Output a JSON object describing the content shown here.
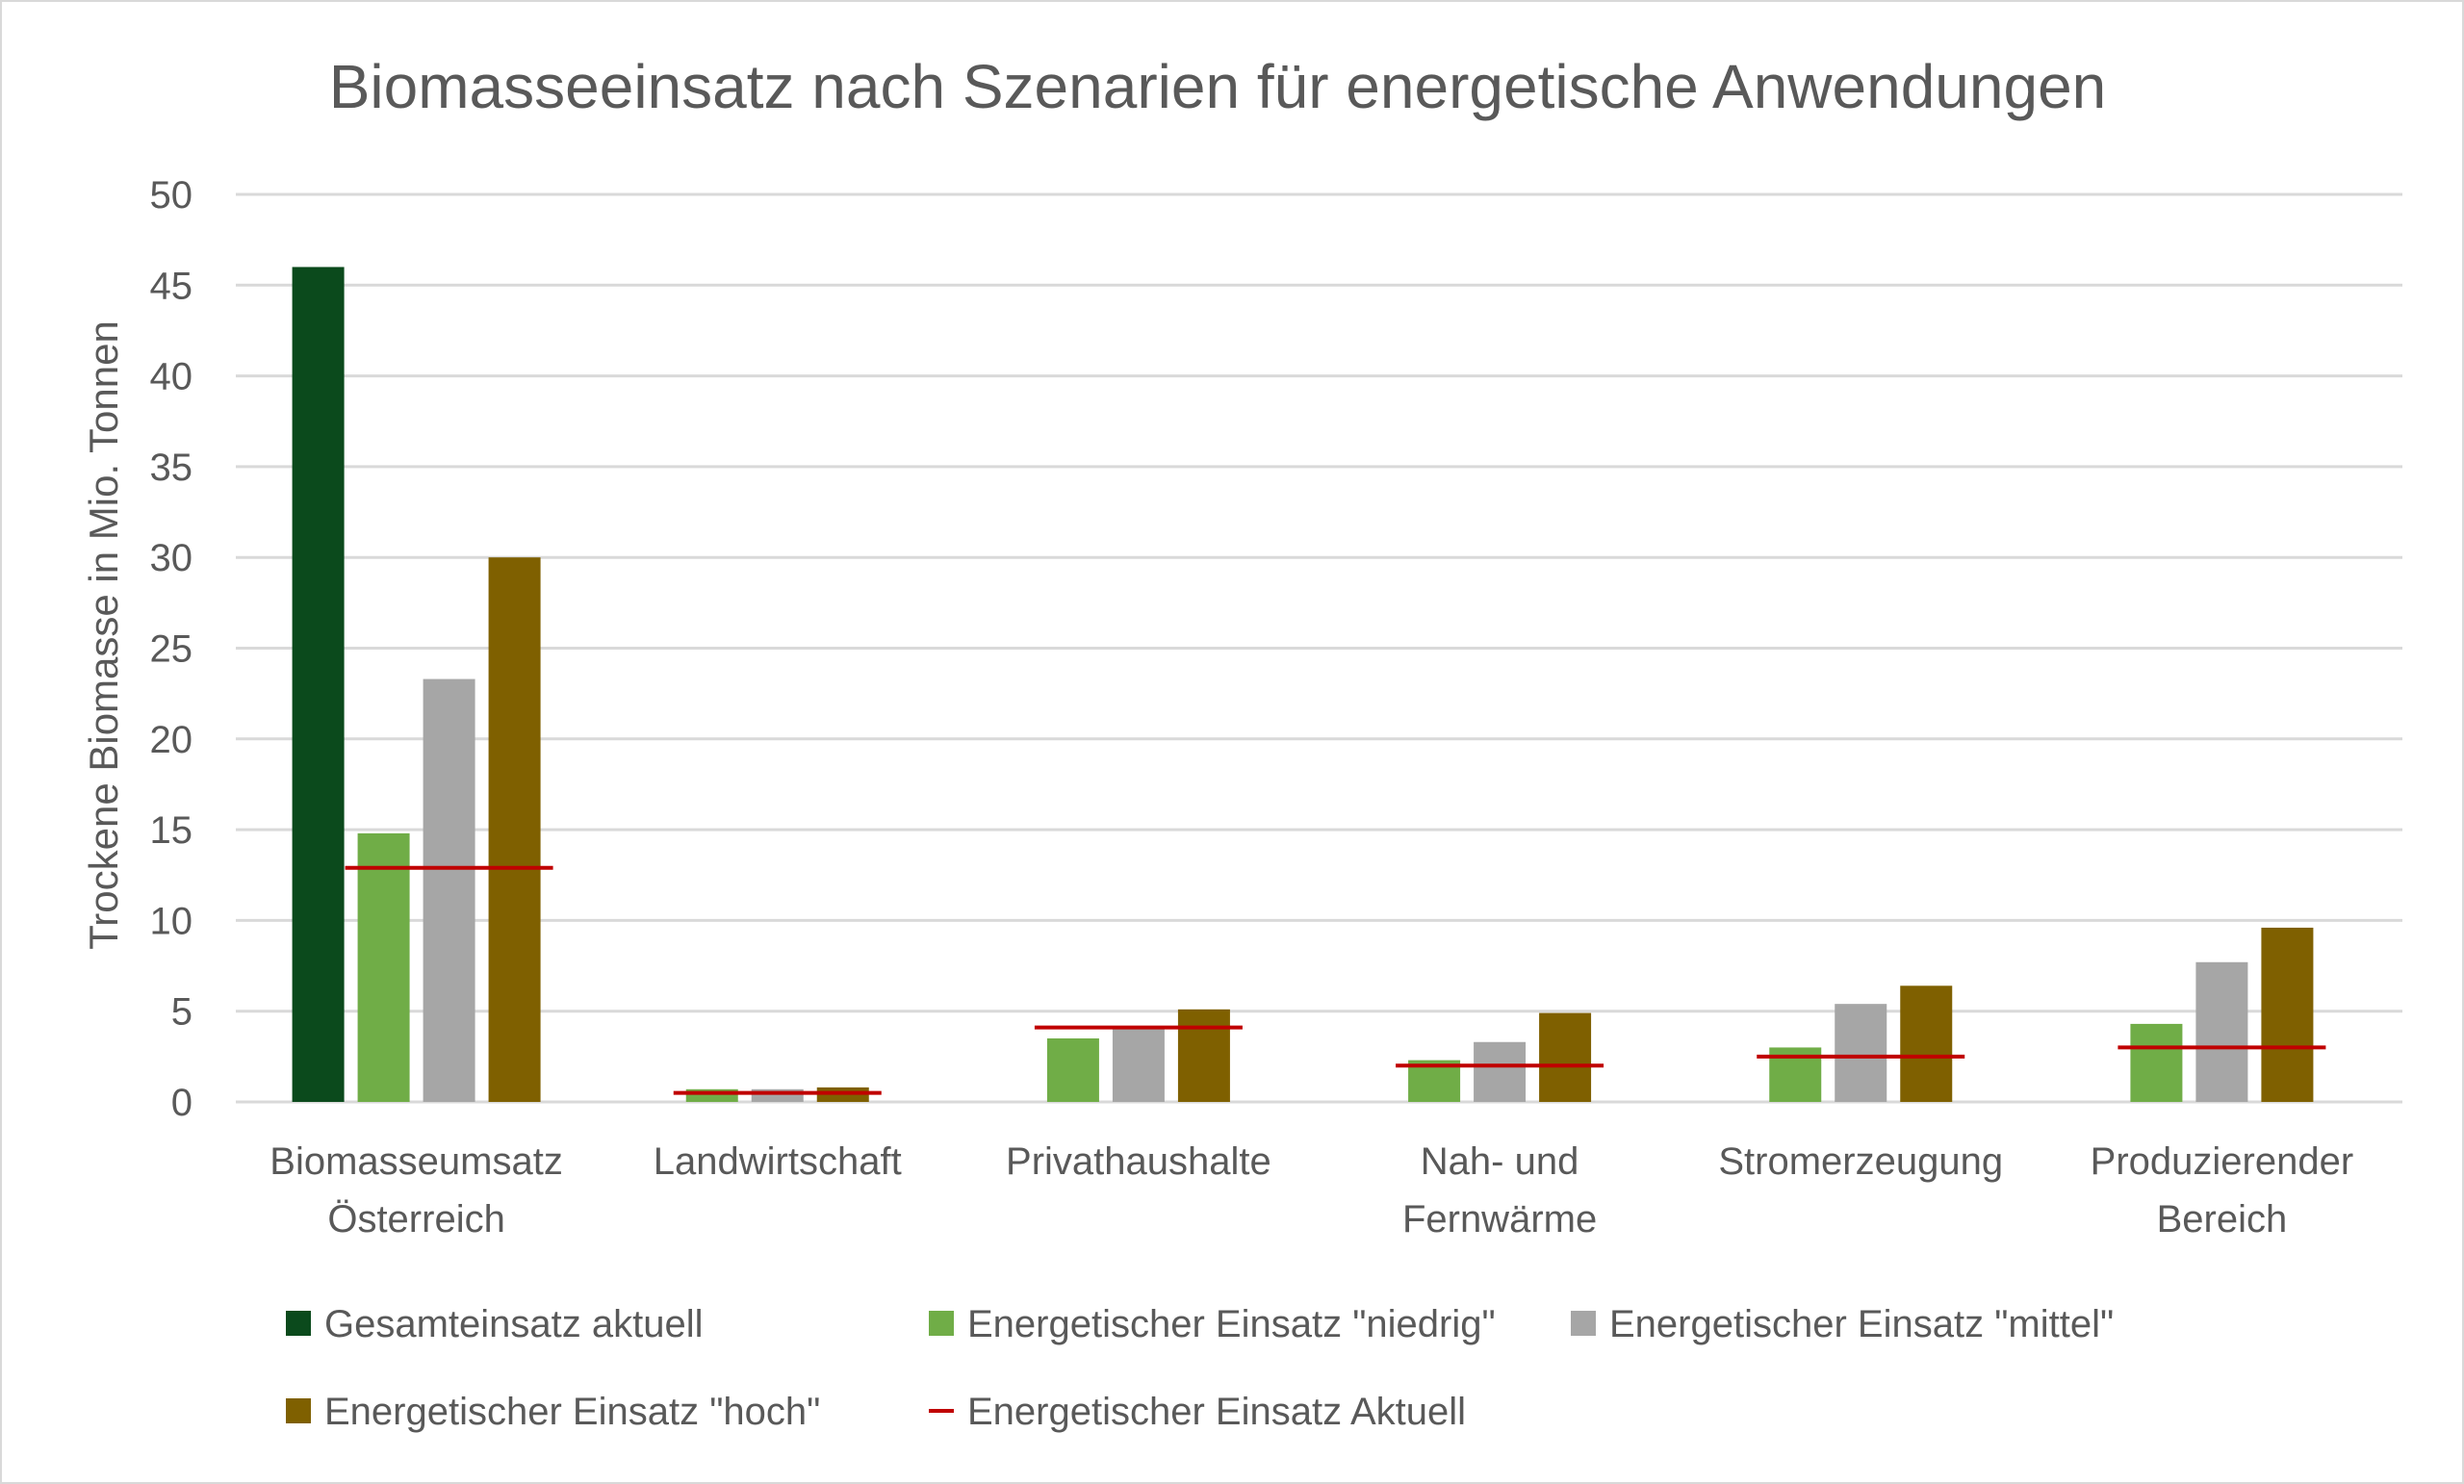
{
  "chart_data": {
    "type": "bar",
    "title": "Biomasseeinsatz nach Szenarien für energetische Anwendungen",
    "xlabel": "",
    "ylabel": "Trockene Biomasse in Mio. Tonnen",
    "ylim": [
      0,
      50
    ],
    "yticks": [
      0,
      5,
      10,
      15,
      20,
      25,
      30,
      35,
      40,
      45,
      50
    ],
    "grid": true,
    "legend_position": "bottom",
    "categories": [
      [
        "Biomasseumsatz",
        "Österreich"
      ],
      [
        "Landwirtschaft"
      ],
      [
        "Privathaushalte"
      ],
      [
        "Nah- und",
        "Fernwärme"
      ],
      [
        "Stromerzeugung"
      ],
      [
        "Produzierender",
        "Bereich"
      ]
    ],
    "series": [
      {
        "name": "Gesamteinsatz aktuell",
        "color": "#0b4a1c",
        "kind": "bar",
        "values": [
          46,
          null,
          null,
          null,
          null,
          null
        ]
      },
      {
        "name": "Energetischer Einsatz \"niedrig\"",
        "color": "#70ad47",
        "kind": "bar",
        "values": [
          14.8,
          0.7,
          3.5,
          2.3,
          3.0,
          4.3
        ]
      },
      {
        "name": "Energetischer Einsatz \"mittel\"",
        "color": "#a6a6a6",
        "kind": "bar",
        "values": [
          23.3,
          0.7,
          4.1,
          3.3,
          5.4,
          7.7
        ]
      },
      {
        "name": "Energetischer Einsatz \"hoch\"",
        "color": "#7f6000",
        "kind": "bar",
        "values": [
          30.0,
          0.8,
          5.1,
          4.9,
          6.4,
          9.6
        ]
      },
      {
        "name": "Energetischer Einsatz Aktuell",
        "color": "#c00000",
        "kind": "line",
        "values": [
          12.9,
          0.5,
          4.1,
          2.0,
          2.5,
          3.0
        ]
      }
    ]
  }
}
